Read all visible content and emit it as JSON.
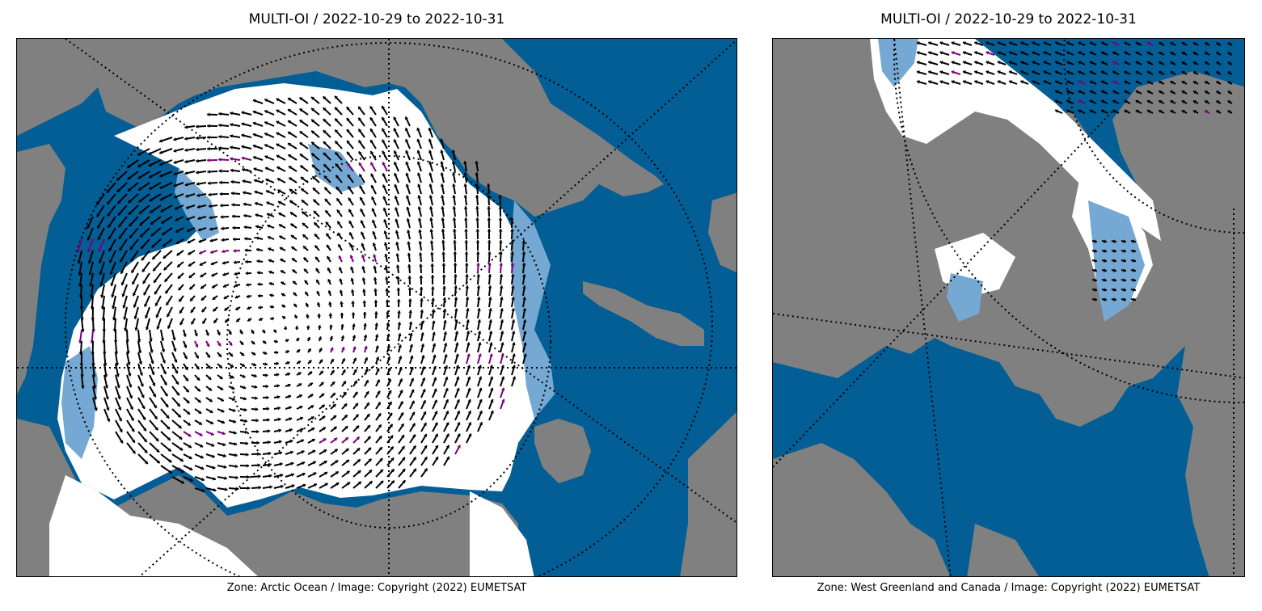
{
  "left_panel": {
    "title": "MULTI-OI / 2022-10-29 to 2022-10-31",
    "caption": "Zone: Arctic Ocean / Image: Copyright (2022) EUMETSAT"
  },
  "right_panel": {
    "title": "MULTI-OI / 2022-10-29 to 2022-10-31",
    "caption": "Zone: West Greenland and Canada / Image: Copyright (2022) EUMETSAT"
  },
  "colors": {
    "ocean": "#025e95",
    "land": "#808080",
    "sea_ice": "#ffffff",
    "marginal_ice": "#75a8d2",
    "drift_vector": "#000000",
    "drift_vector_flagged": "#7a007a",
    "graticule": "#000000"
  }
}
